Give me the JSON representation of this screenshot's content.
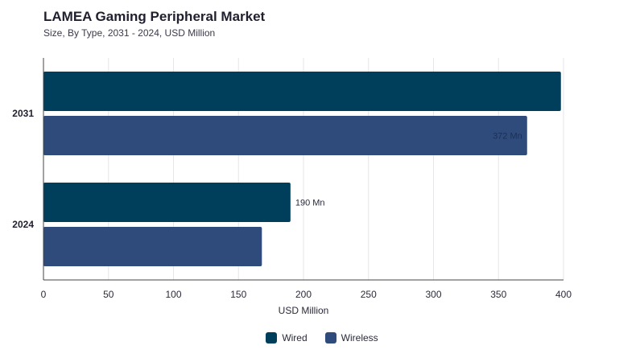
{
  "header": {
    "title": "LAMEA Gaming Peripheral Market",
    "subtitle": "Size, By Type, 2031 - 2024, USD Million"
  },
  "colors": {
    "wired": "#003f5c",
    "wireless": "#2f4b7c",
    "grid": "#e6e6ea",
    "axis": "#444444",
    "text": "#2a2a3a"
  },
  "chart_data": {
    "type": "bar",
    "orientation": "horizontal",
    "categories": [
      "2031",
      "2024"
    ],
    "series": [
      {
        "name": "Wired",
        "color": "#003f5c",
        "values": [
          398,
          190
        ]
      },
      {
        "name": "Wireless",
        "color": "#2f4b7c",
        "values": [
          372,
          168
        ]
      }
    ],
    "data_labels": [
      {
        "series": 1,
        "category": 0,
        "text": "372 Mn",
        "position": "inside-end"
      },
      {
        "series": 0,
        "category": 1,
        "text": "190 Mn",
        "position": "outside-end"
      }
    ],
    "xlabel": "USD Million",
    "ylabel": "",
    "xlim": [
      0,
      400
    ],
    "xticks": [
      0,
      50,
      100,
      150,
      200,
      250,
      300,
      350,
      400
    ],
    "grid": true,
    "legend": "bottom-center"
  }
}
